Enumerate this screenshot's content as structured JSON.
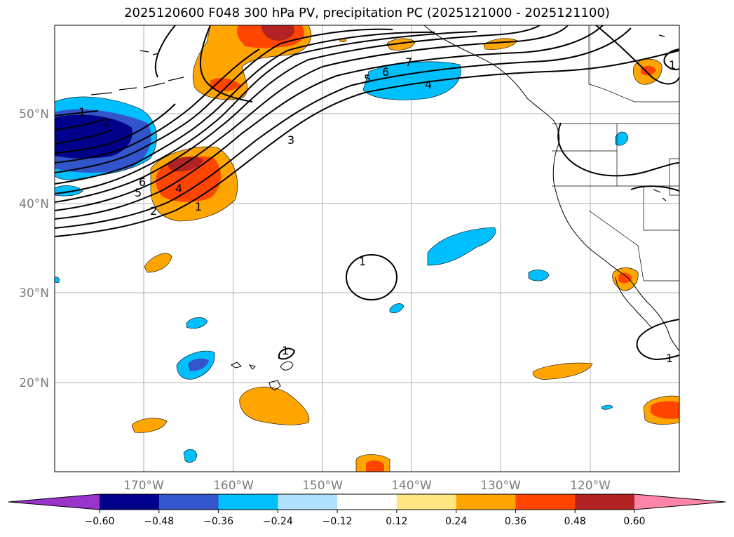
{
  "title": "2025120600 F048 300 hPa PV, precipitation PC (2025121000 - 2025121100)",
  "map": {
    "lat_labels": [
      "50°N",
      "40°N",
      "30°N",
      "20°N"
    ],
    "lon_labels": [
      "170°W",
      "160°W",
      "150°W",
      "140°W",
      "130°W",
      "120°W"
    ],
    "extent": {
      "lon_min": -180,
      "lon_max": -110,
      "lat_min": 10,
      "lat_max": 60
    }
  },
  "contours": {
    "field": "300 hPa PV",
    "labels": [
      "1",
      "2",
      "3",
      "4",
      "5",
      "6",
      "7",
      "1",
      "2",
      "4",
      "5",
      "6",
      "1",
      "1",
      "1",
      "1"
    ]
  },
  "colorbar": {
    "ticks": [
      "−0.60",
      "−0.48",
      "−0.36",
      "−0.24",
      "−0.12",
      "0.12",
      "0.24",
      "0.36",
      "0.48",
      "0.60"
    ],
    "colors": [
      "#9933cc",
      "#00008b",
      "#3355cc",
      "#00bfff",
      "#b0e2ff",
      "#ffffff",
      "#ffe680",
      "#ffa500",
      "#ff4500",
      "#b22222",
      "#ff85a8"
    ]
  },
  "fill_colors": {
    "orange": "#ffa500",
    "red_orange": "#ff4500",
    "dark_red": "#b22222",
    "light_blue": "#00bfff",
    "mid_blue": "#3355cc",
    "navy": "#00008b"
  }
}
